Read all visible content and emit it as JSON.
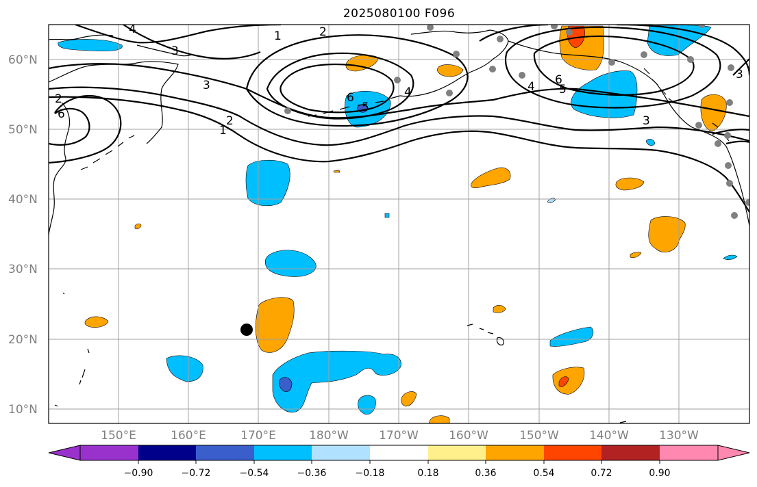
{
  "title": "2025080100 F096",
  "map": {
    "lat_labels": [
      "60°N",
      "50°N",
      "40°N",
      "30°N",
      "20°N",
      "10°N"
    ],
    "lon_labels": [
      "150°E",
      "160°E",
      "170°E",
      "180°W",
      "170°W",
      "160°W",
      "150°W",
      "140°W",
      "130°W"
    ],
    "contour_labels": [
      "1",
      "2",
      "3",
      "4",
      "5",
      "6"
    ]
  },
  "colorbar": {
    "labels": [
      "−0.90",
      "−0.72",
      "−0.54",
      "−0.36",
      "−0.18",
      "0.18",
      "0.36",
      "0.54",
      "0.72",
      "0.90"
    ],
    "colors": [
      "#9932cc",
      "#00008b",
      "#3a5fcd",
      "#00bfff",
      "#b0e2ff",
      "#ffffff",
      "#fff08c",
      "#ffa500",
      "#ff4500",
      "#b22222",
      "#ff88b0"
    ]
  },
  "colors": {
    "grid": "#a0a0a0",
    "station_marker": "#808080",
    "storm_marker": "#000000"
  }
}
